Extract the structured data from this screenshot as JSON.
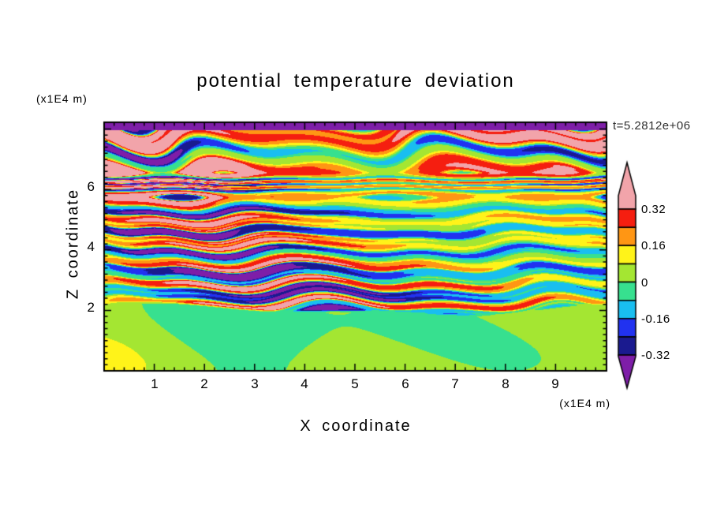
{
  "title": "potential temperature deviation",
  "time_label": "t=5.2812e+06",
  "axes": {
    "x_label": "X coordinate",
    "x_unit": "(x1E4 m)",
    "x_ticks": [
      "1",
      "2",
      "3",
      "4",
      "5",
      "6",
      "7",
      "8",
      "9"
    ],
    "z_label": "Z coordinate",
    "z_unit": "(x1E4 m)",
    "z_ticks": [
      "2",
      "4",
      "6"
    ]
  },
  "colorbar": {
    "labels": [
      "0.32",
      "0.16",
      "0",
      "-0.16",
      "-0.32"
    ],
    "colors": {
      "above": "#F2A4AA",
      "segments_top_to_bottom": [
        "#F51E10",
        "#FF9614",
        "#FFF319",
        "#A4E632",
        "#37E08F",
        "#19BEF0",
        "#2132F0",
        "#1A1A8F"
      ],
      "below": "#7E1EA8"
    }
  },
  "chart_data": {
    "type": "heatmap",
    "title": "potential temperature deviation",
    "xlabel": "X coordinate (x1E4 m)",
    "ylabel": "Z coordinate (x1E4 m)",
    "x_range": [
      0,
      10
    ],
    "z_range": [
      0,
      8.2
    ],
    "time_annotation": "t=5.2812e+06",
    "contour_levels": [
      -0.32,
      -0.24,
      -0.16,
      -0.08,
      0,
      0.08,
      0.16,
      0.24,
      0.32
    ],
    "palette": [
      "#7E1EA8",
      "#1A1A8F",
      "#2132F0",
      "#19BEF0",
      "#37E08F",
      "#A4E632",
      "#FFF319",
      "#FF9614",
      "#F51E10",
      "#F2A4AA"
    ],
    "palette_meaning": "10 filled-contour bands: purple below -0.32 up to pink above +0.32; colorbar has arrow endcaps",
    "legend_position": "right-colorbar-with-end-arrows",
    "grid": false,
    "field_structure": {
      "bottom_region": {
        "z_max": 2.0,
        "amplitude": 0.055,
        "mean": 0.012,
        "description": "smooth weak anomalies (|v|<0.08), green / green-yellow blobs below z=2"
      },
      "middle_region": {
        "z_range": [
          2.0,
          6.0
        ],
        "amplitude": 0.42,
        "layer_wavenumber": 9.2,
        "description": "fine wavy horizontal turbulent layers spanning the full color range (red/orange/yellow/blue/navy/purple streaks)"
      },
      "upper_region": {
        "z_range": [
          6.0,
          8.2
        ],
        "amplitude": 0.52,
        "layer_wavenumber": 5.0,
        "bias": 0.1,
        "description": "thicker wave layers alternating pink (>0.32) and purple (<-0.32)"
      },
      "top_strip": {
        "z_min": 7.98,
        "value": -0.5,
        "description": "thin solid purple strip along the top edge"
      }
    }
  }
}
